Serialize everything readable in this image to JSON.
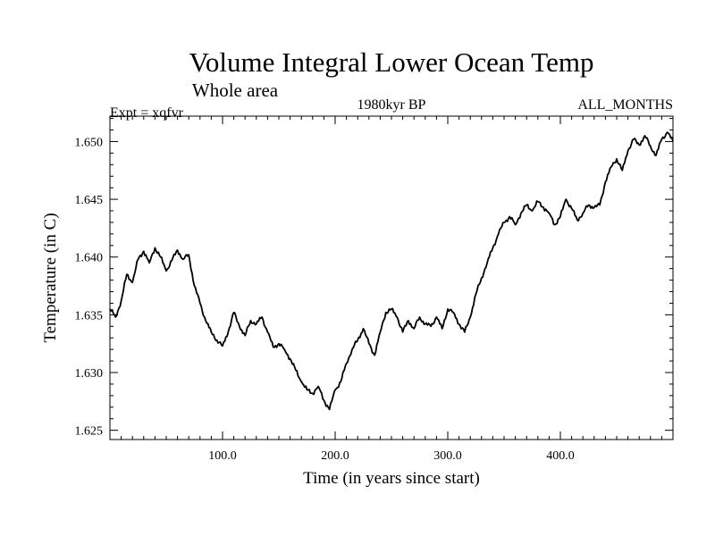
{
  "chart_data": {
    "type": "line",
    "title": "Volume Integral Lower Ocean Temp",
    "subtitle": "Whole area",
    "expt_label": "Expt = xqfvr",
    "period_label": "1980kyr BP",
    "months_label": "ALL_MONTHS",
    "xlabel": "Time (in years since start)",
    "ylabel": "Temperature (in C)",
    "xlim": [
      0,
      500
    ],
    "ylim": [
      1.6242,
      1.6522
    ],
    "x_ticks": [
      100,
      200,
      300,
      400
    ],
    "x_tick_labels": [
      "100.0",
      "200.0",
      "300.0",
      "400.0"
    ],
    "y_ticks": [
      1.625,
      1.63,
      1.635,
      1.64,
      1.645,
      1.65
    ],
    "y_tick_labels": [
      "1.625",
      "1.630",
      "1.635",
      "1.640",
      "1.645",
      "1.650"
    ],
    "grid": false,
    "series": [
      {
        "name": "xqfvr",
        "x": [
          0,
          5,
          10,
          15,
          20,
          25,
          30,
          35,
          40,
          45,
          50,
          55,
          60,
          65,
          70,
          75,
          80,
          85,
          90,
          95,
          100,
          105,
          110,
          115,
          120,
          125,
          130,
          135,
          140,
          145,
          150,
          155,
          160,
          165,
          170,
          175,
          180,
          185,
          190,
          195,
          200,
          205,
          210,
          215,
          220,
          225,
          230,
          235,
          240,
          245,
          250,
          255,
          260,
          265,
          270,
          275,
          280,
          285,
          290,
          295,
          300,
          305,
          310,
          315,
          320,
          325,
          330,
          335,
          340,
          345,
          350,
          355,
          360,
          365,
          370,
          375,
          380,
          385,
          390,
          395,
          400,
          405,
          410,
          415,
          420,
          425,
          430,
          435,
          440,
          445,
          450,
          455,
          460,
          465,
          470,
          475,
          480,
          485,
          490,
          495,
          500
        ],
        "values": [
          1.6355,
          1.6348,
          1.6362,
          1.6385,
          1.6378,
          1.6398,
          1.6405,
          1.6395,
          1.6408,
          1.64,
          1.6388,
          1.6397,
          1.6406,
          1.6398,
          1.6402,
          1.6375,
          1.636,
          1.6345,
          1.6335,
          1.6328,
          1.6323,
          1.6335,
          1.6352,
          1.634,
          1.6332,
          1.6345,
          1.6342,
          1.6348,
          1.6335,
          1.6322,
          1.6325,
          1.632,
          1.6312,
          1.6302,
          1.6292,
          1.6285,
          1.6282,
          1.6288,
          1.6276,
          1.6268,
          1.6285,
          1.6292,
          1.6308,
          1.632,
          1.6328,
          1.6338,
          1.6325,
          1.6315,
          1.6335,
          1.6352,
          1.6355,
          1.6348,
          1.6335,
          1.6345,
          1.6338,
          1.6348,
          1.6342,
          1.634,
          1.6348,
          1.6338,
          1.6355,
          1.6352,
          1.6342,
          1.6335,
          1.6348,
          1.6368,
          1.6382,
          1.6395,
          1.6408,
          1.642,
          1.643,
          1.6435,
          1.6428,
          1.6438,
          1.6445,
          1.644,
          1.6448,
          1.6443,
          1.6438,
          1.6428,
          1.6435,
          1.645,
          1.6442,
          1.6432,
          1.6438,
          1.6445,
          1.6443,
          1.6445,
          1.6465,
          1.6478,
          1.6485,
          1.6475,
          1.6492,
          1.6502,
          1.6497,
          1.6505,
          1.6496,
          1.6488,
          1.6502,
          1.6508,
          1.65
        ]
      }
    ]
  }
}
